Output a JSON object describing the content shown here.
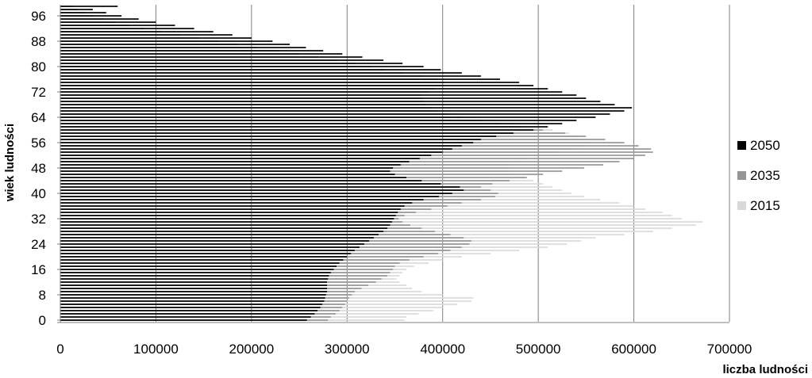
{
  "chart_data": {
    "type": "bar",
    "orientation": "horizontal",
    "xlabel": "liczba ludności",
    "ylabel": "wiek ludności",
    "xlim": [
      0,
      700000
    ],
    "x_ticks": [
      "0",
      "100000",
      "200000",
      "300000",
      "400000",
      "500000",
      "600000",
      "700000"
    ],
    "y_tick_labels": [
      "0",
      "8",
      "16",
      "24",
      "32",
      "40",
      "48",
      "56",
      "64",
      "72",
      "80",
      "88",
      "96"
    ],
    "categories": [
      0,
      1,
      2,
      3,
      4,
      5,
      6,
      7,
      8,
      9,
      10,
      11,
      12,
      13,
      14,
      15,
      16,
      17,
      18,
      19,
      20,
      21,
      22,
      23,
      24,
      25,
      26,
      27,
      28,
      29,
      30,
      31,
      32,
      33,
      34,
      35,
      36,
      37,
      38,
      39,
      40,
      41,
      42,
      43,
      44,
      45,
      46,
      47,
      48,
      49,
      50,
      51,
      52,
      53,
      54,
      55,
      56,
      57,
      58,
      59,
      60,
      61,
      62,
      63,
      64,
      65,
      66,
      67,
      68,
      69,
      70,
      71,
      72,
      73,
      74,
      75,
      76,
      77,
      78,
      79,
      80,
      81,
      82,
      83,
      84,
      85,
      86,
      87,
      88,
      89,
      90,
      91,
      92,
      93,
      94,
      95,
      96,
      97,
      98,
      99
    ],
    "grid": "vertical",
    "legend_position": "right",
    "series": [
      {
        "name": "2015",
        "color": "#d9d9d9",
        "values": [
          360000,
          362000,
          375000,
          390000,
          400000,
          415000,
          430000,
          432000,
          400000,
          378000,
          368000,
          362000,
          355000,
          352000,
          355000,
          358000,
          362000,
          370000,
          385000,
          400000,
          420000,
          450000,
          480000,
          510000,
          530000,
          545000,
          560000,
          590000,
          620000,
          640000,
          665000,
          672000,
          650000,
          640000,
          630000,
          612000,
          600000,
          585000,
          565000,
          548000,
          535000,
          525000,
          515000,
          505000,
          495000,
          488000,
          475000,
          470000,
          468000,
          470000,
          480000,
          490000,
          500000,
          520000,
          535000,
          548000,
          555000,
          552000,
          545000,
          532000,
          515000,
          498000,
          478000,
          458000,
          440000,
          418000,
          402000,
          390000,
          372000,
          360000,
          350000,
          340000,
          330000,
          320000,
          312000,
          305000,
          300000,
          312000,
          330000,
          326000,
          312000,
          290000,
          265000,
          242000,
          220000,
          195000,
          175000,
          150000,
          125000,
          110000,
          95000,
          80000,
          65000,
          52000,
          40000,
          30000,
          22000,
          15000,
          10000,
          6000
        ]
      },
      {
        "name": "2035",
        "color": "#969696",
        "values": [
          280000,
          283000,
          288000,
          292000,
          295000,
          298000,
          300000,
          302000,
          305000,
          308000,
          315000,
          322000,
          330000,
          336000,
          342000,
          345000,
          348000,
          350000,
          355000,
          365000,
          380000,
          395000,
          408000,
          420000,
          428000,
          430000,
          422000,
          408000,
          392000,
          378000,
          366000,
          358000,
          354000,
          360000,
          372000,
          388000,
          405000,
          420000,
          440000,
          455000,
          458000,
          450000,
          440000,
          452000,
          470000,
          488000,
          505000,
          525000,
          548000,
          568000,
          585000,
          600000,
          612000,
          620000,
          618000,
          605000,
          590000,
          570000,
          550000,
          528000,
          505000,
          482000,
          460000,
          440000,
          420000,
          405000,
          395000,
          388000,
          382000,
          380000,
          378000,
          378000,
          385000,
          392000,
          398000,
          402000,
          395000,
          380000,
          358000,
          340000,
          325000,
          310000,
          290000,
          270000,
          250000,
          228000,
          205000,
          185000,
          165000,
          145000,
          125000,
          105000,
          88000,
          72000,
          58000,
          45000,
          35000,
          26000,
          18000,
          12000
        ]
      },
      {
        "name": "2050",
        "color": "#000000",
        "values": [
          258000,
          262000,
          266000,
          269000,
          272000,
          274000,
          276000,
          277000,
          278000,
          279000,
          279000,
          279000,
          279000,
          280000,
          281000,
          283000,
          286000,
          289000,
          292000,
          296000,
          300000,
          304000,
          308000,
          313000,
          318000,
          323000,
          328000,
          333000,
          338000,
          342000,
          345000,
          347000,
          349000,
          351000,
          353000,
          356000,
          360000,
          368000,
          380000,
          396000,
          410000,
          422000,
          418000,
          398000,
          378000,
          362000,
          350000,
          345000,
          348000,
          356000,
          365000,
          376000,
          388000,
          400000,
          410000,
          420000,
          432000,
          440000,
          456000,
          474000,
          495000,
          510000,
          525000,
          540000,
          560000,
          575000,
          590000,
          598000,
          580000,
          565000,
          550000,
          540000,
          525000,
          510000,
          495000,
          480000,
          460000,
          440000,
          420000,
          398000,
          380000,
          358000,
          338000,
          316000,
          295000,
          275000,
          257000,
          240000,
          222000,
          200000,
          180000,
          160000,
          140000,
          120000,
          100000,
          82000,
          64000,
          48000,
          34000,
          60000
        ]
      }
    ]
  }
}
